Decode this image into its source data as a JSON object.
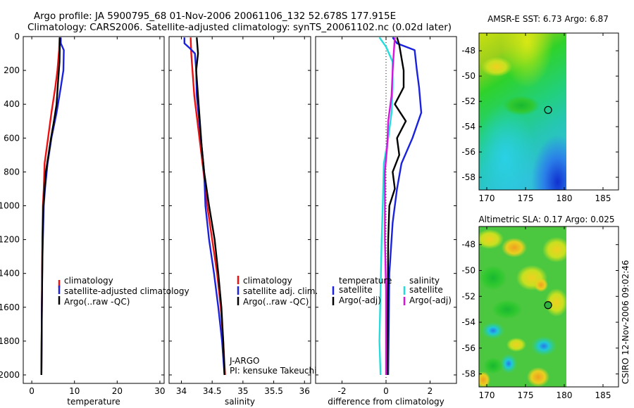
{
  "title": {
    "line1": "Argo profile: JA 5900795_68 01-Nov-2006 20061106_132 52.678S 177.915E",
    "line2": "Climatology: CARS2006. Satellite-adjusted climatology: synTS_20061102.nc (0.02d later)"
  },
  "credit": "CSIRO 12-Nov-2006 09:02:46",
  "chart_data": [
    {
      "id": "temperature",
      "type": "line",
      "xlabel": "temperature",
      "ylabel": "",
      "xlim": [
        -2,
        31
      ],
      "ylim": [
        2050,
        0
      ],
      "y_reversed": true,
      "xticks": [
        0,
        10,
        20,
        30
      ],
      "yticks": [
        0,
        200,
        400,
        600,
        800,
        1000,
        1200,
        1400,
        1600,
        1800,
        2000
      ],
      "legend": {
        "placement": "lower-right",
        "entries": [
          "climatology",
          "satellite-adjusted climatology",
          "Argo(..raw -QC)"
        ]
      },
      "series": [
        {
          "name": "climatology",
          "color": "#ee1111",
          "points": [
            [
              6.5,
              5
            ],
            [
              6.4,
              80
            ],
            [
              6.0,
              200
            ],
            [
              5.5,
              300
            ],
            [
              4.6,
              450
            ],
            [
              3.8,
              600
            ],
            [
              3.0,
              750
            ],
            [
              2.8,
              900
            ],
            [
              2.6,
              1000
            ],
            [
              2.45,
              1300
            ],
            [
              2.35,
              1600
            ],
            [
              2.3,
              1800
            ],
            [
              2.25,
              2000
            ]
          ]
        },
        {
          "name": "satellite-adjusted climatology",
          "color": "#1a22dd",
          "points": [
            [
              6.8,
              5
            ],
            [
              6.8,
              40
            ],
            [
              7.5,
              80
            ],
            [
              7.4,
              200
            ],
            [
              6.8,
              300
            ],
            [
              5.8,
              450
            ],
            [
              4.6,
              600
            ],
            [
              3.7,
              750
            ],
            [
              3.1,
              900
            ],
            [
              2.8,
              1000
            ],
            [
              2.5,
              1300
            ],
            [
              2.35,
              1600
            ],
            [
              2.3,
              1800
            ],
            [
              2.25,
              2000
            ]
          ]
        },
        {
          "name": "Argo(..raw -QC)",
          "color": "#000000",
          "points": [
            [
              6.6,
              5
            ],
            [
              6.5,
              150
            ],
            [
              6.2,
              250
            ],
            [
              5.8,
              400
            ],
            [
              5.2,
              500
            ],
            [
              4.5,
              600
            ],
            [
              3.9,
              700
            ],
            [
              3.3,
              800
            ],
            [
              3.0,
              900
            ],
            [
              2.7,
              1000
            ],
            [
              2.5,
              1200
            ],
            [
              2.4,
              1500
            ],
            [
              2.3,
              1800
            ],
            [
              2.25,
              2000
            ]
          ]
        }
      ]
    },
    {
      "id": "salinity",
      "type": "line",
      "xlabel": "salinity",
      "ylabel": "",
      "xlim": [
        33.8,
        36.1
      ],
      "ylim": [
        2050,
        0
      ],
      "y_reversed": true,
      "xticks": [
        34,
        34.5,
        35,
        35.5,
        36
      ],
      "xticklabels": [
        "34",
        "34.5",
        "35",
        "35.5",
        "36"
      ],
      "legend": {
        "placement": "lower-right",
        "entries": [
          "climatology",
          "satellite adj. clim.",
          "Argo(..raw -QC)"
        ]
      },
      "annotations": [
        "J-ARGO",
        "PI: kensuke Takeuchi"
      ],
      "series": [
        {
          "name": "climatology",
          "color": "#ee1111",
          "points": [
            [
              34.15,
              5
            ],
            [
              34.16,
              100
            ],
            [
              34.18,
              200
            ],
            [
              34.21,
              350
            ],
            [
              34.26,
              500
            ],
            [
              34.31,
              650
            ],
            [
              34.36,
              800
            ],
            [
              34.42,
              1000
            ],
            [
              34.5,
              1200
            ],
            [
              34.58,
              1400
            ],
            [
              34.64,
              1600
            ],
            [
              34.68,
              1800
            ],
            [
              34.71,
              2000
            ]
          ]
        },
        {
          "name": "satellite adj. clim.",
          "color": "#1a22dd",
          "points": [
            [
              34.05,
              5
            ],
            [
              34.05,
              40
            ],
            [
              34.14,
              70
            ],
            [
              34.22,
              100
            ],
            [
              34.24,
              200
            ],
            [
              34.25,
              350
            ],
            [
              34.29,
              500
            ],
            [
              34.33,
              650
            ],
            [
              34.37,
              800
            ],
            [
              34.39,
              1000
            ],
            [
              34.45,
              1200
            ],
            [
              34.53,
              1400
            ],
            [
              34.6,
              1600
            ],
            [
              34.66,
              1800
            ],
            [
              34.7,
              2000
            ]
          ]
        },
        {
          "name": "Argo(..raw -QC)",
          "color": "#000000",
          "points": [
            [
              34.25,
              5
            ],
            [
              34.27,
              100
            ],
            [
              34.24,
              200
            ],
            [
              34.27,
              350
            ],
            [
              34.3,
              500
            ],
            [
              34.33,
              650
            ],
            [
              34.37,
              800
            ],
            [
              34.45,
              1000
            ],
            [
              34.54,
              1200
            ],
            [
              34.6,
              1400
            ],
            [
              34.65,
              1600
            ],
            [
              34.68,
              1800
            ],
            [
              34.7,
              2000
            ]
          ]
        }
      ]
    },
    {
      "id": "difference",
      "type": "line",
      "xlabel": "difference from climatology",
      "ylabel": "",
      "xlim": [
        -3.2,
        3.2
      ],
      "ylim": [
        2050,
        0
      ],
      "y_reversed": true,
      "xticks": [
        -2,
        0,
        2
      ],
      "legend": {
        "placement": "lower-center",
        "groups": [
          {
            "title": "temperature",
            "entries": [
              "satellite",
              "Argo(-adj)"
            ]
          },
          {
            "title": "salinity",
            "entries": [
              "satellite",
              "Argo(-adj)"
            ]
          }
        ]
      },
      "series": [
        {
          "name": "temperature satellite",
          "color": "#1a22dd",
          "points": [
            [
              0.3,
              5
            ],
            [
              0.5,
              40
            ],
            [
              1.3,
              80
            ],
            [
              1.4,
              200
            ],
            [
              1.5,
              300
            ],
            [
              1.6,
              450
            ],
            [
              1.2,
              600
            ],
            [
              0.7,
              750
            ],
            [
              0.5,
              900
            ],
            [
              0.3,
              1100
            ],
            [
              0.15,
              1400
            ],
            [
              0.1,
              2000
            ]
          ]
        },
        {
          "name": "temperature Argo(-adj)",
          "color": "#000000",
          "points": [
            [
              0.5,
              5
            ],
            [
              0.6,
              50
            ],
            [
              0.8,
              200
            ],
            [
              0.8,
              300
            ],
            [
              0.4,
              400
            ],
            [
              0.9,
              500
            ],
            [
              0.5,
              600
            ],
            [
              0.6,
              700
            ],
            [
              0.3,
              800
            ],
            [
              0.4,
              900
            ],
            [
              0.15,
              1000
            ],
            [
              0.1,
              1200
            ],
            [
              0.05,
              2000
            ]
          ]
        },
        {
          "name": "salinity satellite",
          "color": "#22dddd",
          "points": [
            [
              -0.3,
              5
            ],
            [
              0.0,
              60
            ],
            [
              0.3,
              150
            ],
            [
              0.3,
              300
            ],
            [
              0.25,
              450
            ],
            [
              0.1,
              600
            ],
            [
              -0.1,
              750
            ],
            [
              -0.15,
              1000
            ],
            [
              -0.2,
              1200
            ],
            [
              -0.25,
              1500
            ],
            [
              -0.3,
              1800
            ],
            [
              -0.25,
              2000
            ]
          ]
        },
        {
          "name": "salinity Argo(-adj)",
          "color": "#dd11dd",
          "points": [
            [
              0.4,
              5
            ],
            [
              0.35,
              100
            ],
            [
              0.3,
              200
            ],
            [
              0.25,
              350
            ],
            [
              0.1,
              500
            ],
            [
              0.05,
              650
            ],
            [
              -0.05,
              800
            ],
            [
              -0.05,
              1000
            ],
            [
              -0.05,
              1200
            ],
            [
              0.0,
              1500
            ],
            [
              0.0,
              2000
            ]
          ]
        }
      ]
    }
  ],
  "maps": [
    {
      "id": "sst-map",
      "title": "AMSR-E SST: 6.73 Argo: 6.87",
      "xticks": [
        "170",
        "175",
        "180",
        "185"
      ],
      "yticks": [
        "-48",
        "-50",
        "-52",
        "-54",
        "-56",
        "-58"
      ],
      "lon_range": [
        169,
        187
      ],
      "lat_range": [
        -59,
        -46.6
      ],
      "data_lon_max": 180,
      "marker": {
        "lon": 177.915,
        "lat": -52.678
      }
    },
    {
      "id": "sla-map",
      "title": "Altimetric SLA: 0.17 Argo: 0.025",
      "xticks": [
        "170",
        "175",
        "180",
        "185"
      ],
      "yticks": [
        "-48",
        "-50",
        "-52",
        "-54",
        "-56",
        "-58"
      ],
      "lon_range": [
        169,
        187
      ],
      "lat_range": [
        -59,
        -46.6
      ],
      "data_lon_max": 180,
      "marker": {
        "lon": 177.915,
        "lat": -52.678
      }
    }
  ]
}
